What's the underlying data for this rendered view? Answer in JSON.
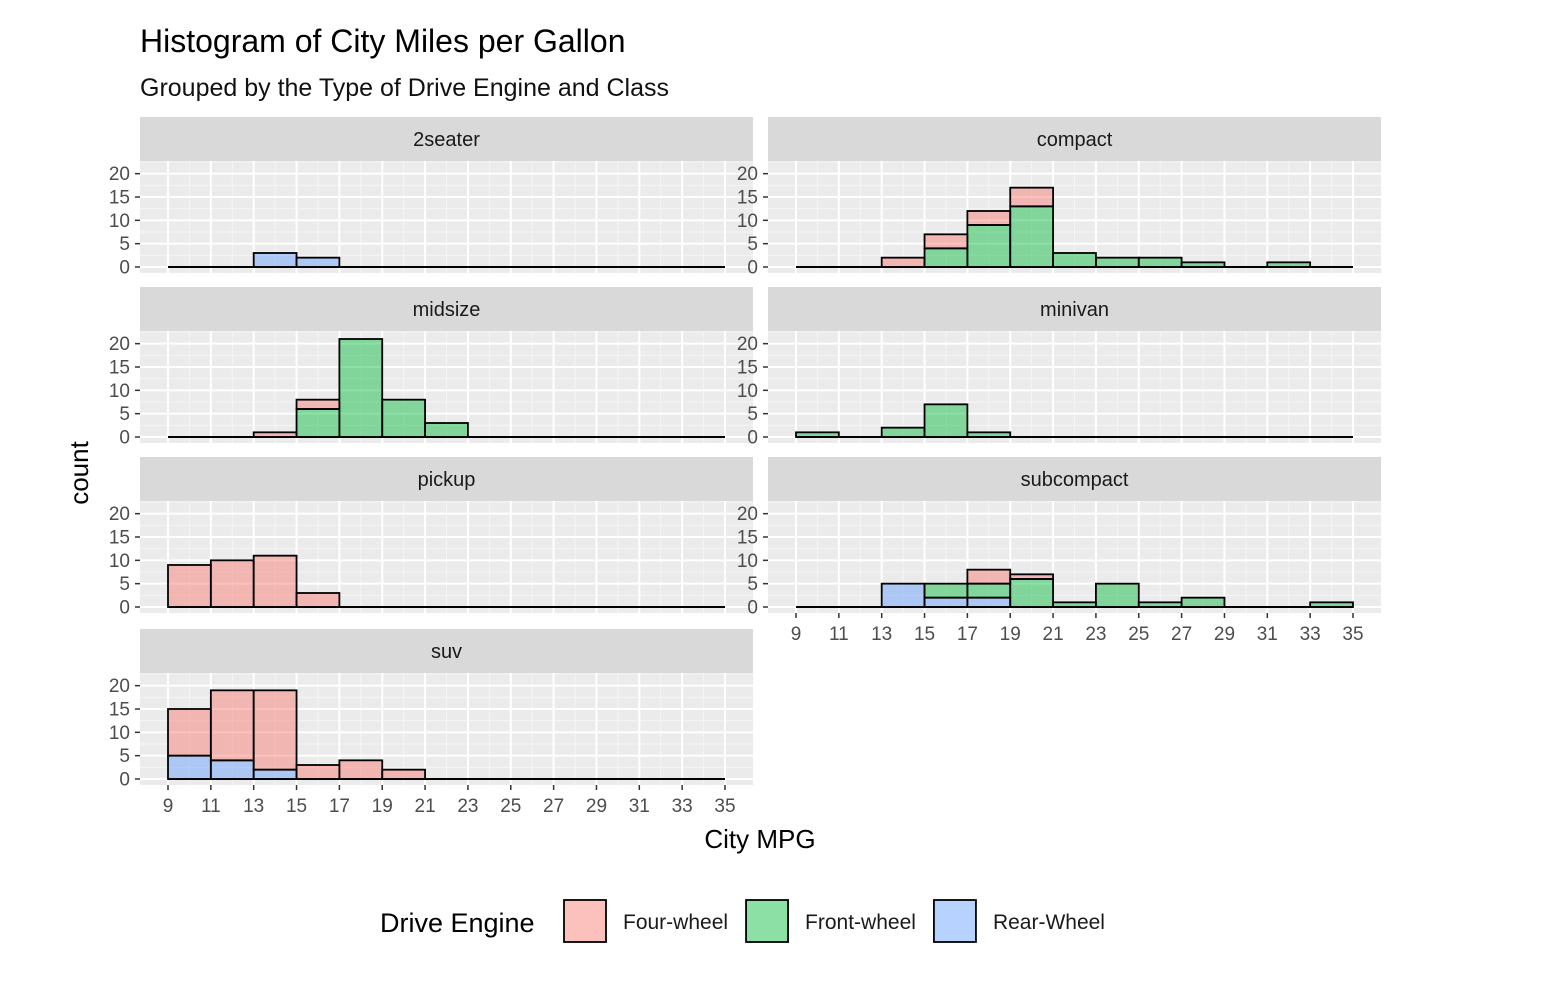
{
  "chart_data": {
    "type": "bar",
    "title": "Histogram of City Miles per Gallon",
    "subtitle": "Grouped by the Type of Drive Engine and Class",
    "xlabel": "City MPG",
    "ylabel": "count",
    "bin_width": 2,
    "xlim": [
      9,
      35
    ],
    "ylim": [
      0,
      21
    ],
    "x_ticks": [
      9,
      11,
      13,
      15,
      17,
      19,
      21,
      23,
      25,
      27,
      29,
      31,
      33,
      35
    ],
    "y_ticks": [
      0,
      5,
      10,
      15,
      20
    ],
    "grid": true,
    "legend_position": "bottom",
    "legend_title": "Drive Engine",
    "series": [
      {
        "name": "Four-wheel",
        "color": "#F8766D"
      },
      {
        "name": "Front-wheel",
        "color": "#00BA38"
      },
      {
        "name": "Rear-Wheel",
        "color": "#619CFF"
      }
    ],
    "facets": [
      {
        "name": "2seater",
        "bins": [
          {
            "x": 13,
            "Four-wheel": 0,
            "Front-wheel": 0,
            "Rear-Wheel": 3
          },
          {
            "x": 15,
            "Four-wheel": 0,
            "Front-wheel": 0,
            "Rear-Wheel": 2
          }
        ]
      },
      {
        "name": "compact",
        "bins": [
          {
            "x": 13,
            "Four-wheel": 2,
            "Front-wheel": 0,
            "Rear-Wheel": 0
          },
          {
            "x": 15,
            "Four-wheel": 3,
            "Front-wheel": 4,
            "Rear-Wheel": 0
          },
          {
            "x": 17,
            "Four-wheel": 3,
            "Front-wheel": 9,
            "Rear-Wheel": 0
          },
          {
            "x": 19,
            "Four-wheel": 4,
            "Front-wheel": 13,
            "Rear-Wheel": 0
          },
          {
            "x": 21,
            "Four-wheel": 0,
            "Front-wheel": 3,
            "Rear-Wheel": 0
          },
          {
            "x": 23,
            "Four-wheel": 0,
            "Front-wheel": 2,
            "Rear-Wheel": 0
          },
          {
            "x": 25,
            "Four-wheel": 0,
            "Front-wheel": 2,
            "Rear-Wheel": 0
          },
          {
            "x": 27,
            "Four-wheel": 0,
            "Front-wheel": 1,
            "Rear-Wheel": 0
          },
          {
            "x": 31,
            "Four-wheel": 0,
            "Front-wheel": 1,
            "Rear-Wheel": 0
          }
        ]
      },
      {
        "name": "midsize",
        "bins": [
          {
            "x": 13,
            "Four-wheel": 1,
            "Front-wheel": 0,
            "Rear-Wheel": 0
          },
          {
            "x": 15,
            "Four-wheel": 2,
            "Front-wheel": 6,
            "Rear-Wheel": 0
          },
          {
            "x": 17,
            "Four-wheel": 0,
            "Front-wheel": 21,
            "Rear-Wheel": 0
          },
          {
            "x": 19,
            "Four-wheel": 0,
            "Front-wheel": 8,
            "Rear-Wheel": 0
          },
          {
            "x": 21,
            "Four-wheel": 0,
            "Front-wheel": 3,
            "Rear-Wheel": 0
          }
        ]
      },
      {
        "name": "minivan",
        "bins": [
          {
            "x": 9,
            "Four-wheel": 0,
            "Front-wheel": 1,
            "Rear-Wheel": 0
          },
          {
            "x": 13,
            "Four-wheel": 0,
            "Front-wheel": 2,
            "Rear-Wheel": 0
          },
          {
            "x": 15,
            "Four-wheel": 0,
            "Front-wheel": 7,
            "Rear-Wheel": 0
          },
          {
            "x": 17,
            "Four-wheel": 0,
            "Front-wheel": 1,
            "Rear-Wheel": 0
          }
        ]
      },
      {
        "name": "pickup",
        "bins": [
          {
            "x": 9,
            "Four-wheel": 9,
            "Front-wheel": 0,
            "Rear-Wheel": 0
          },
          {
            "x": 11,
            "Four-wheel": 10,
            "Front-wheel": 0,
            "Rear-Wheel": 0
          },
          {
            "x": 13,
            "Four-wheel": 11,
            "Front-wheel": 0,
            "Rear-Wheel": 0
          },
          {
            "x": 15,
            "Four-wheel": 3,
            "Front-wheel": 0,
            "Rear-Wheel": 0
          }
        ]
      },
      {
        "name": "subcompact",
        "bins": [
          {
            "x": 13,
            "Four-wheel": 0,
            "Front-wheel": 0,
            "Rear-Wheel": 5
          },
          {
            "x": 15,
            "Four-wheel": 0,
            "Front-wheel": 3,
            "Rear-Wheel": 2
          },
          {
            "x": 17,
            "Four-wheel": 3,
            "Front-wheel": 3,
            "Rear-Wheel": 2
          },
          {
            "x": 19,
            "Four-wheel": 1,
            "Front-wheel": 6,
            "Rear-Wheel": 0
          },
          {
            "x": 21,
            "Four-wheel": 0,
            "Front-wheel": 1,
            "Rear-Wheel": 0
          },
          {
            "x": 23,
            "Four-wheel": 0,
            "Front-wheel": 5,
            "Rear-Wheel": 0
          },
          {
            "x": 25,
            "Four-wheel": 0,
            "Front-wheel": 1,
            "Rear-Wheel": 0
          },
          {
            "x": 27,
            "Four-wheel": 0,
            "Front-wheel": 2,
            "Rear-Wheel": 0
          },
          {
            "x": 33,
            "Four-wheel": 0,
            "Front-wheel": 1,
            "Rear-Wheel": 0
          }
        ]
      },
      {
        "name": "suv",
        "bins": [
          {
            "x": 9,
            "Four-wheel": 10,
            "Front-wheel": 0,
            "Rear-Wheel": 5
          },
          {
            "x": 11,
            "Four-wheel": 15,
            "Front-wheel": 0,
            "Rear-Wheel": 4
          },
          {
            "x": 13,
            "Four-wheel": 17,
            "Front-wheel": 0,
            "Rear-Wheel": 2
          },
          {
            "x": 15,
            "Four-wheel": 3,
            "Front-wheel": 0,
            "Rear-Wheel": 0
          },
          {
            "x": 17,
            "Four-wheel": 4,
            "Front-wheel": 0,
            "Rear-Wheel": 0
          },
          {
            "x": 19,
            "Four-wheel": 2,
            "Front-wheel": 0,
            "Rear-Wheel": 0
          }
        ]
      }
    ]
  }
}
